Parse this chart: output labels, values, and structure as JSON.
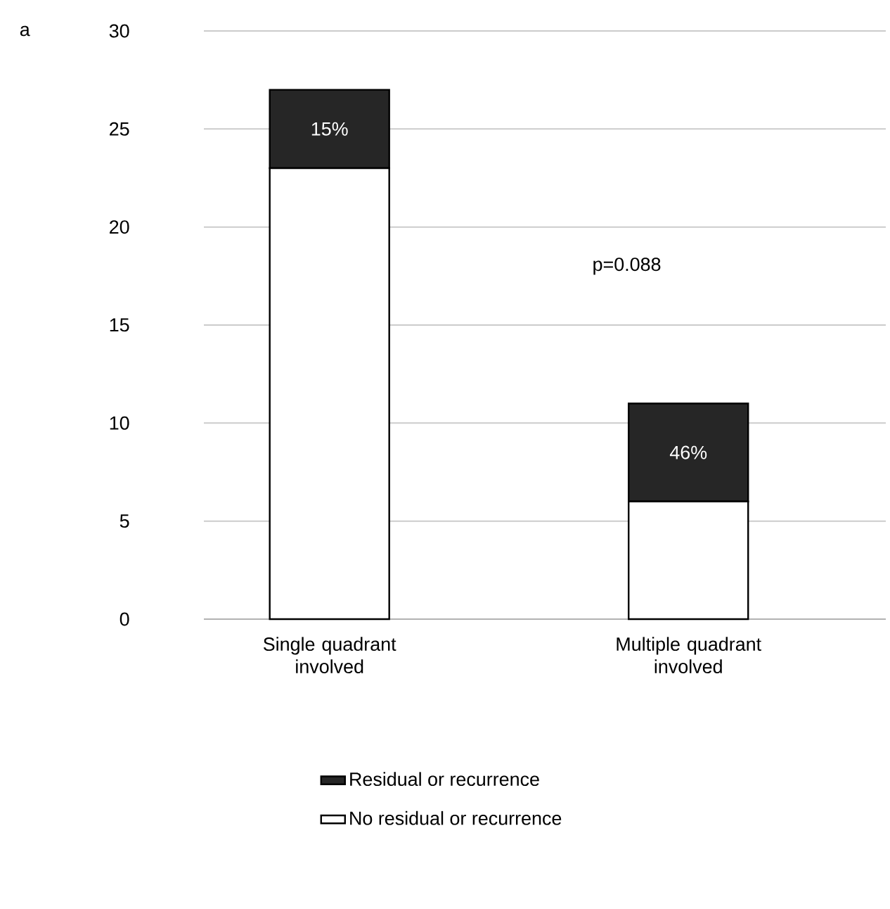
{
  "chart_data": {
    "type": "bar",
    "stacked": true,
    "categories": [
      "Single quadrant involved",
      "Multiple quadrant involved"
    ],
    "series": [
      {
        "name": "No residual or recurrence",
        "color": "#ffffff",
        "values": [
          23,
          6
        ]
      },
      {
        "name": "Residual or recurrence",
        "color": "#262626",
        "values": [
          4,
          5
        ]
      }
    ],
    "ylim": [
      0,
      30
    ],
    "yticks": [
      0,
      5,
      10,
      15,
      20,
      25,
      30
    ],
    "grid": "y",
    "legend": "bottom",
    "annotations": [
      "a",
      "p=0.088",
      "15%",
      "46%"
    ]
  }
}
